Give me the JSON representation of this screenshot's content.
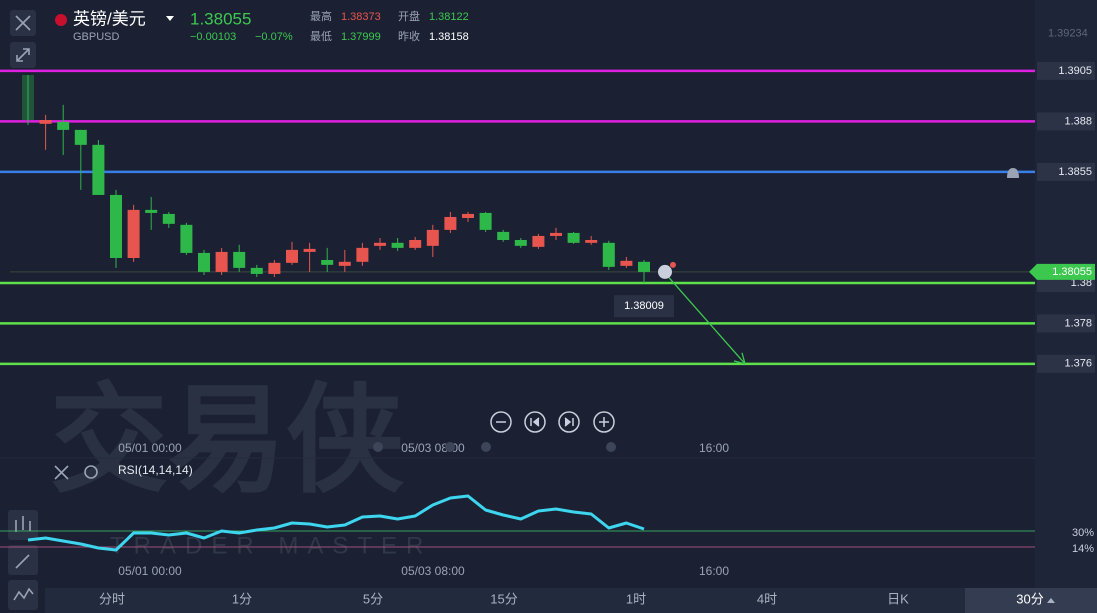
{
  "header": {
    "title": "英镑/美元",
    "symbol": "GBPUSD",
    "price": "1.38055",
    "change": "−0.00103",
    "change_pct": "−0.07%",
    "stats": [
      {
        "label": "最高",
        "value": "1.38373",
        "color": "#e8554e"
      },
      {
        "label": "开盘",
        "value": "1.38122",
        "color": "#3cc84f"
      },
      {
        "label": "最低",
        "value": "1.37999",
        "color": "#3cc84f"
      },
      {
        "label": "昨收",
        "value": "1.38158",
        "color": "#ffffff"
      }
    ]
  },
  "watermark": {
    "cn": "交易侠",
    "en": "TRADER MASTER"
  },
  "tabs": [
    "分时",
    "1分",
    "5分",
    "15分",
    "1时",
    "4时",
    "日K",
    "30分"
  ],
  "selected_tab": 7,
  "chart_data": [
    {
      "type": "candlestick",
      "up_color": "#e8554e",
      "down_color": "#2fb84a",
      "ylim": [
        1.37421,
        1.39302
      ],
      "yticks": [
        1.39234
      ],
      "levels": [
        {
          "value": 1.3905,
          "color": "#e020e0"
        },
        {
          "value": 1.388,
          "color": "#e020e0"
        },
        {
          "value": 1.3855,
          "color": "#3a7ee8"
        },
        {
          "value": 1.38,
          "color": "#5ee04a"
        },
        {
          "value": 1.378,
          "color": "#5ee04a"
        },
        {
          "value": 1.376,
          "color": "#5ee04a"
        }
      ],
      "last_price": 1.38055,
      "crosshair_price": 1.38009,
      "time_labels": [
        "05/01 00:00",
        "05/03 08:00",
        "16:00"
      ],
      "open": [
        1.3903,
        1.38788,
        1.38798,
        1.38758,
        1.38684,
        1.38436,
        1.38124,
        1.38362,
        1.38342,
        1.38288,
        1.38149,
        1.38055,
        1.38154,
        1.38075,
        1.38045,
        1.381,
        1.38154,
        1.38114,
        1.38085,
        1.38105,
        1.38184,
        1.38199,
        1.38174,
        1.38184,
        1.38263,
        1.38322,
        1.38347,
        1.38253,
        1.38213,
        1.38179,
        1.38233,
        1.38248,
        1.38199,
        1.38199,
        1.38085,
        1.38105
      ],
      "high": [
        1.3903,
        1.38832,
        1.38882,
        1.38758,
        1.38708,
        1.38461,
        1.38387,
        1.38426,
        1.38352,
        1.38298,
        1.38164,
        1.38174,
        1.38189,
        1.3809,
        1.38114,
        1.38204,
        1.38199,
        1.38174,
        1.38164,
        1.38199,
        1.38223,
        1.38223,
        1.38228,
        1.38288,
        1.38352,
        1.38352,
        1.38352,
        1.38263,
        1.38223,
        1.38243,
        1.38273,
        1.38253,
        1.38233,
        1.38209,
        1.38129,
        1.38114
      ],
      "low": [
        1.38783,
        1.38659,
        1.38634,
        1.38461,
        1.38436,
        1.38075,
        1.38105,
        1.38263,
        1.38273,
        1.38139,
        1.3804,
        1.3804,
        1.38055,
        1.3803,
        1.3803,
        1.3809,
        1.38055,
        1.38055,
        1.38055,
        1.38085,
        1.38164,
        1.38159,
        1.38164,
        1.38129,
        1.38248,
        1.38303,
        1.38253,
        1.38204,
        1.38174,
        1.38169,
        1.38213,
        1.38194,
        1.38189,
        1.38065,
        1.38075,
        1.37999
      ],
      "close": [
        1.38807,
        1.38807,
        1.38758,
        1.38684,
        1.38436,
        1.38124,
        1.38362,
        1.38347,
        1.38293,
        1.38149,
        1.38055,
        1.38154,
        1.38075,
        1.38045,
        1.381,
        1.38164,
        1.38169,
        1.3809,
        1.38105,
        1.38174,
        1.38199,
        1.38174,
        1.38213,
        1.38263,
        1.38327,
        1.38342,
        1.38263,
        1.38213,
        1.38184,
        1.38233,
        1.38248,
        1.38199,
        1.38213,
        1.3808,
        1.3811,
        1.38055
      ]
    },
    {
      "type": "line",
      "title": "RSI(14,14,14)",
      "ylim": [
        0,
        100
      ],
      "yticks": [
        {
          "value": 30,
          "label": "30%"
        },
        {
          "value": 14,
          "label": "14%"
        }
      ],
      "time_labels": [
        "05/01 00:00",
        "05/03 08:00",
        "16:00"
      ],
      "series": [
        {
          "color": "#3dd6ee",
          "values": [
            21,
            23,
            20,
            17,
            13,
            11,
            28,
            28,
            26,
            28,
            23,
            30,
            28,
            31,
            33,
            38,
            37,
            34,
            36,
            44,
            45,
            42,
            45,
            56,
            63,
            65,
            51,
            46,
            42,
            50,
            52,
            49,
            47,
            33,
            38,
            32
          ]
        }
      ]
    }
  ]
}
